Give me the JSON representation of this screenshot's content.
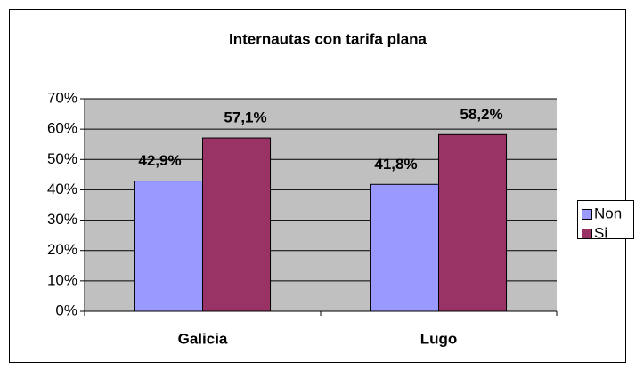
{
  "chart_data": {
    "type": "bar",
    "title": "Internautas con tarifa plana",
    "categories": [
      "Galicia",
      "Lugo"
    ],
    "series": [
      {
        "name": "Non",
        "color": "#9999ff",
        "values": [
          42.9,
          41.8
        ],
        "value_labels": [
          "42,9%",
          "41,8%"
        ]
      },
      {
        "name": "Si",
        "color": "#993366",
        "values": [
          57.1,
          58.2
        ],
        "value_labels": [
          "57,1%",
          "58,2%"
        ]
      }
    ],
    "ylim": [
      0,
      70
    ],
    "yticks": [
      {
        "value": 0,
        "label": "0%"
      },
      {
        "value": 10,
        "label": "10%"
      },
      {
        "value": 20,
        "label": "20%"
      },
      {
        "value": 30,
        "label": "30%"
      },
      {
        "value": 40,
        "label": "40%"
      },
      {
        "value": 50,
        "label": "50%"
      },
      {
        "value": 60,
        "label": "60%"
      },
      {
        "value": 70,
        "label": "70%"
      }
    ],
    "grid": true,
    "legend": "right"
  }
}
